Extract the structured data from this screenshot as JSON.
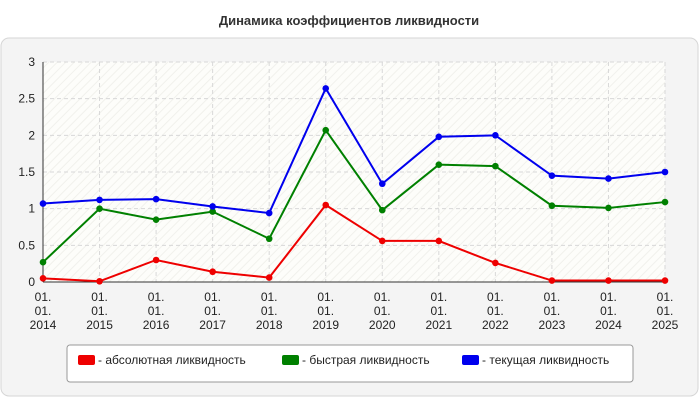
{
  "chart_data": {
    "type": "line",
    "title": "Динамика коэффициентов ликвидности",
    "xlabel": "",
    "ylabel": "",
    "ylim": [
      0,
      3
    ],
    "yticks": [
      "0",
      "0.5",
      "1",
      "1.5",
      "2",
      "2.5",
      "3"
    ],
    "categories": [
      [
        "01.",
        "01.",
        "2014"
      ],
      [
        "01.",
        "01.",
        "2015"
      ],
      [
        "01.",
        "01.",
        "2016"
      ],
      [
        "01.",
        "01.",
        "2017"
      ],
      [
        "01.",
        "01.",
        "2018"
      ],
      [
        "01.",
        "01.",
        "2019"
      ],
      [
        "01.",
        "01.",
        "2020"
      ],
      [
        "01.",
        "01.",
        "2021"
      ],
      [
        "01.",
        "01.",
        "2022"
      ],
      [
        "01.",
        "01.",
        "2023"
      ],
      [
        "01.",
        "01.",
        "2024"
      ],
      [
        "01.",
        "01.",
        "2025"
      ]
    ],
    "series": [
      {
        "name": "- абсолютная ликвидность",
        "color": "#ee0000",
        "values": [
          0.05,
          0.01,
          0.3,
          0.14,
          0.06,
          1.05,
          0.56,
          0.56,
          0.26,
          0.02,
          0.02,
          0.02
        ]
      },
      {
        "name": "- быстрая ликвидность",
        "color": "#008000",
        "values": [
          0.27,
          1.0,
          0.85,
          0.96,
          0.59,
          2.07,
          0.98,
          1.6,
          1.58,
          1.04,
          1.01,
          1.09
        ]
      },
      {
        "name": "- текущая ликвидность",
        "color": "#0000ee",
        "values": [
          1.07,
          1.12,
          1.13,
          1.03,
          0.94,
          2.64,
          1.34,
          1.98,
          2.0,
          1.45,
          1.41,
          1.5
        ]
      }
    ],
    "grid": true,
    "legend_position": "bottom"
  }
}
